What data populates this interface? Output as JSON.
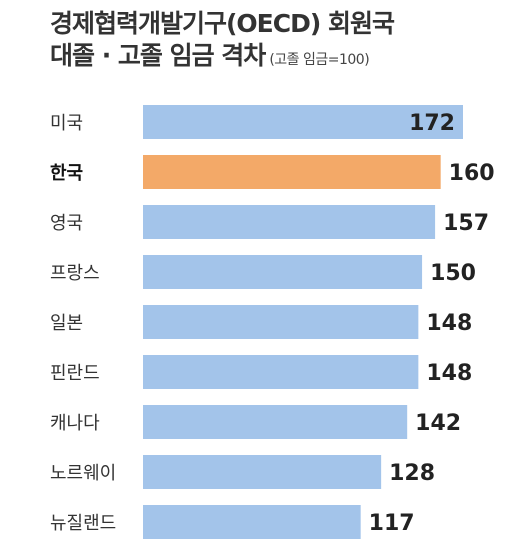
{
  "title": "경제협력개발기구(OECD) 회원국",
  "subtitle_main": "대졸 · 고졸 임금 격차",
  "subtitle_note": "(고졸 임금=100)",
  "colors": {
    "bar": "#a3c4ea",
    "highlight": "#f3a968"
  },
  "chart_data": {
    "type": "bar",
    "orientation": "horizontal",
    "title": "경제협력개발기구(OECD) 회원국 대졸 · 고졸 임금 격차",
    "note": "(고졸 임금=100)",
    "categories": [
      "미국",
      "한국",
      "영국",
      "프랑스",
      "일본",
      "핀란드",
      "캐나다",
      "노르웨이",
      "뉴질랜드"
    ],
    "values": [
      172,
      160,
      157,
      150,
      148,
      148,
      142,
      128,
      117
    ],
    "highlight": "한국",
    "grid": false,
    "legend": "none"
  }
}
